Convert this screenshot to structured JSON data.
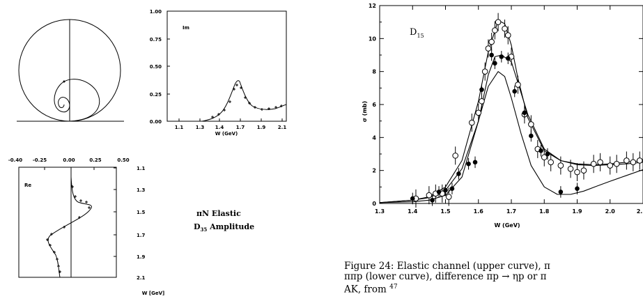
{
  "argand": {
    "x_ticks": [
      "-0.40",
      "-0.25",
      "0.00",
      "0.25",
      "0.50"
    ]
  },
  "im_panel": {
    "label": "Im",
    "y_ticks": [
      "1.00",
      "0.75",
      "0.50",
      "0.25",
      "0.00"
    ],
    "x_ticks": [
      "1.1",
      "1.3",
      "1.4",
      "1.7",
      "1.9",
      "2.1"
    ],
    "xlabel": "W (GeV)"
  },
  "re_panel": {
    "label": "Re",
    "y_ticks": [
      "1.1",
      "1.3",
      "1.5",
      "1.7",
      "1.9",
      "2.1"
    ],
    "ylabel": "W [GeV]"
  },
  "title": {
    "line1": "πN Elastic",
    "line2": "D",
    "line2_sub": "35",
    "line2_rest": " Amplitude"
  },
  "chart_data": {
    "type": "scatter",
    "label": "D",
    "label_sub": "15",
    "xlabel": "W (GeV)",
    "ylabel": "σ (mb)",
    "x_ticks": [
      "1.3",
      "1.4",
      "1.5",
      "1.6",
      "1.7",
      "1.8",
      "1.9",
      "2.0",
      "2."
    ],
    "y_ticks": [
      "0",
      "2",
      "4",
      "6",
      "8",
      "10",
      "12"
    ],
    "xlim": [
      1.3,
      2.1
    ],
    "ylim": [
      0,
      12
    ],
    "series": [
      {
        "marker": "open-circle",
        "points": [
          [
            1.41,
            0.3
          ],
          [
            1.45,
            0.5
          ],
          [
            1.47,
            0.6
          ],
          [
            1.49,
            0.6
          ],
          [
            1.51,
            0.4
          ],
          [
            1.53,
            2.9
          ],
          [
            1.58,
            4.9
          ],
          [
            1.6,
            5.5
          ],
          [
            1.61,
            6.2
          ],
          [
            1.62,
            8.0
          ],
          [
            1.63,
            9.4
          ],
          [
            1.64,
            9.8
          ],
          [
            1.65,
            10.5
          ],
          [
            1.66,
            11.0
          ],
          [
            1.68,
            10.6
          ],
          [
            1.69,
            10.2
          ],
          [
            1.7,
            8.9
          ],
          [
            1.72,
            7.2
          ],
          [
            1.74,
            5.4
          ],
          [
            1.76,
            4.8
          ],
          [
            1.78,
            3.3
          ],
          [
            1.8,
            2.8
          ],
          [
            1.82,
            2.5
          ],
          [
            1.85,
            2.3
          ],
          [
            1.88,
            2.1
          ],
          [
            1.9,
            1.9
          ],
          [
            1.92,
            2.0
          ],
          [
            1.95,
            2.4
          ],
          [
            1.97,
            2.5
          ],
          [
            2.0,
            2.3
          ],
          [
            2.02,
            2.4
          ],
          [
            2.05,
            2.6
          ],
          [
            2.07,
            2.5
          ],
          [
            2.09,
            2.6
          ]
        ]
      },
      {
        "marker": "filled-circle",
        "points": [
          [
            1.4,
            0.3
          ],
          [
            1.46,
            0.2
          ],
          [
            1.48,
            0.7
          ],
          [
            1.5,
            0.8
          ],
          [
            1.52,
            0.9
          ],
          [
            1.54,
            1.8
          ],
          [
            1.57,
            2.4
          ],
          [
            1.59,
            2.5
          ],
          [
            1.61,
            6.9
          ],
          [
            1.64,
            9.0
          ],
          [
            1.65,
            8.5
          ],
          [
            1.67,
            8.9
          ],
          [
            1.69,
            8.8
          ],
          [
            1.71,
            6.8
          ],
          [
            1.74,
            5.5
          ],
          [
            1.76,
            4.1
          ],
          [
            1.79,
            3.2
          ],
          [
            1.81,
            3.0
          ],
          [
            1.85,
            0.7
          ],
          [
            1.9,
            0.9
          ]
        ]
      }
    ],
    "curves": [
      {
        "name": "upper",
        "x": [
          1.3,
          1.4,
          1.45,
          1.5,
          1.55,
          1.6,
          1.63,
          1.66,
          1.68,
          1.7,
          1.72,
          1.75,
          1.8,
          1.85,
          1.9,
          1.95,
          2.0,
          2.05,
          2.1
        ],
        "y": [
          0.05,
          0.2,
          0.4,
          1.0,
          2.6,
          6.2,
          9.2,
          11.1,
          10.9,
          9.6,
          7.6,
          5.2,
          3.2,
          2.6,
          2.35,
          2.3,
          2.35,
          2.4,
          2.5
        ]
      },
      {
        "name": "middle",
        "x": [
          1.3,
          1.4,
          1.45,
          1.5,
          1.55,
          1.6,
          1.63,
          1.65,
          1.67,
          1.7,
          1.75,
          1.8,
          1.85,
          1.9,
          1.95,
          2.0,
          2.05,
          2.1
        ],
        "y": [
          0.05,
          0.2,
          0.35,
          0.8,
          2.1,
          5.0,
          7.8,
          8.9,
          9.0,
          8.6,
          5.4,
          3.3,
          2.6,
          2.4,
          2.35,
          2.4,
          2.5,
          2.6
        ]
      },
      {
        "name": "lower",
        "x": [
          1.3,
          1.4,
          1.45,
          1.5,
          1.55,
          1.6,
          1.63,
          1.66,
          1.68,
          1.7,
          1.73,
          1.76,
          1.8,
          1.84,
          1.88,
          1.92,
          1.96,
          2.0,
          2.05,
          2.1
        ],
        "y": [
          0.05,
          0.1,
          0.2,
          0.5,
          1.6,
          5.0,
          7.1,
          8.0,
          7.7,
          6.4,
          4.2,
          2.3,
          1.0,
          0.55,
          0.55,
          0.75,
          1.05,
          1.35,
          1.7,
          2.05
        ]
      }
    ]
  },
  "caption": {
    "line1": "Figure 24: Elastic channel (upper curve), π",
    "line2": "ππp (lower curve), difference πp → ηp or π",
    "line3": "AK, from ",
    "ref": "47"
  }
}
